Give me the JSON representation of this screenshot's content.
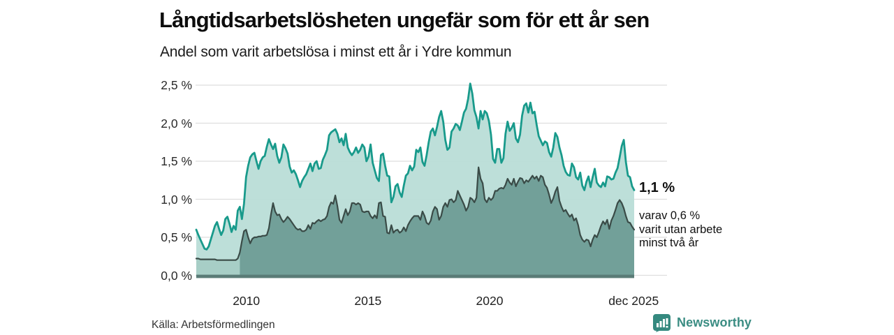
{
  "header": {
    "title": "Långtidsarbetslösheten ungefär som för ett år sen",
    "subtitle": "Andel som varit arbetslösa i minst ett år i Ydre kommun"
  },
  "chart_data": {
    "type": "area",
    "title": "Långtidsarbetslösheten ungefär som för ett år sen",
    "subtitle": "Andel som varit arbetslösa i minst ett år i Ydre kommun",
    "unit": "%",
    "x_domain": [
      2008,
      2026
    ],
    "ylim": [
      0,
      2.5
    ],
    "grid": true,
    "colors": {
      "line_1yr": "#189a8b",
      "fill_1yr": "#b9ddd7",
      "line_2yr": "#3a4b47",
      "fill_2yr": "#6e9c96",
      "fill_2yr_early": "#a5cdc5",
      "baseline_bar": "#5a7c77",
      "gridline": "#dedede"
    },
    "y_ticks": [
      {
        "label": "0,0 %",
        "value": 0
      },
      {
        "label": "0,5 %",
        "value": 0.5
      },
      {
        "label": "1,0 %",
        "value": 1.0
      },
      {
        "label": "1,5 %",
        "value": 1.5
      },
      {
        "label": "2,0 %",
        "value": 2.0
      },
      {
        "label": "2,5 %",
        "value": 2.5
      }
    ],
    "x_ticks": [
      {
        "label": "2010",
        "value": 2010
      },
      {
        "label": "2015",
        "value": 2015
      },
      {
        "label": "2020",
        "value": 2020
      },
      {
        "label": "dec 2025",
        "value": 2025.92
      }
    ],
    "series": [
      {
        "name": "Andel som varit arbetslösa i minst ett år",
        "color": "#189a8b",
        "fill": "#b9ddd7",
        "end_value": 1.1,
        "values": [
          0.6,
          0.53,
          0.47,
          0.41,
          0.35,
          0.34,
          0.38,
          0.47,
          0.56,
          0.65,
          0.7,
          0.61,
          0.53,
          0.59,
          0.74,
          0.77,
          0.68,
          0.57,
          0.65,
          0.6,
          0.85,
          0.9,
          0.74,
          0.94,
          1.29,
          1.44,
          1.55,
          1.59,
          1.61,
          1.5,
          1.4,
          1.5,
          1.55,
          1.57,
          1.69,
          1.79,
          1.72,
          1.66,
          1.73,
          1.57,
          1.48,
          1.55,
          1.72,
          1.67,
          1.6,
          1.43,
          1.35,
          1.38,
          1.33,
          1.25,
          1.16,
          1.24,
          1.29,
          1.33,
          1.4,
          1.47,
          1.37,
          1.47,
          1.5,
          1.4,
          1.41,
          1.52,
          1.58,
          1.65,
          1.84,
          1.88,
          1.9,
          1.92,
          1.86,
          1.75,
          1.8,
          1.71,
          1.86,
          1.68,
          1.62,
          1.58,
          1.62,
          1.68,
          1.61,
          1.65,
          1.72,
          1.68,
          1.5,
          1.56,
          1.72,
          1.48,
          1.38,
          1.28,
          1.24,
          1.58,
          1.6,
          1.44,
          1.31,
          1.3,
          0.96,
          1.03,
          1.17,
          1.2,
          1.09,
          1.03,
          1.18,
          1.31,
          1.34,
          1.44,
          1.38,
          1.43,
          1.65,
          1.62,
          1.68,
          1.49,
          1.44,
          1.58,
          1.75,
          1.89,
          1.93,
          1.84,
          1.95,
          2.08,
          2.16,
          2.02,
          1.78,
          1.65,
          1.68,
          1.89,
          1.93,
          1.99,
          1.97,
          1.91,
          2.02,
          2.14,
          2.19,
          2.32,
          2.52,
          2.39,
          2.17,
          2.08,
          1.93,
          2.16,
          2.05,
          2.16,
          2.13,
          2.03,
          1.85,
          1.53,
          1.48,
          1.66,
          1.66,
          1.48,
          1.54,
          1.86,
          2.02,
          1.9,
          1.94,
          2.0,
          1.8,
          1.75,
          1.85,
          2.1,
          2.23,
          2.26,
          2.14,
          2.27,
          2.13,
          2.15,
          1.98,
          1.83,
          1.77,
          1.71,
          1.76,
          1.74,
          1.62,
          1.56,
          1.68,
          1.87,
          1.82,
          1.68,
          1.58,
          1.44,
          1.36,
          1.32,
          1.31,
          1.47,
          1.42,
          1.29,
          1.26,
          1.35,
          1.18,
          1.12,
          1.23,
          1.3,
          1.16,
          1.29,
          1.4,
          1.22,
          1.18,
          1.16,
          1.22,
          1.17,
          1.3,
          1.29,
          1.26,
          1.27,
          1.35,
          1.41,
          1.55,
          1.7,
          1.78,
          1.49,
          1.31,
          1.29,
          1.17,
          1.12
        ]
      },
      {
        "name": "varav utan arbete minst två år",
        "color": "#3a4b47",
        "fill": "#6e9c96",
        "end_value": 0.6,
        "values": [
          0.22,
          0.22,
          0.21,
          0.21,
          0.21,
          0.21,
          0.21,
          0.21,
          0.21,
          0.21,
          0.2,
          0.2,
          0.2,
          0.2,
          0.2,
          0.2,
          0.2,
          0.2,
          0.2,
          0.2,
          0.22,
          0.3,
          0.45,
          0.58,
          0.6,
          0.5,
          0.42,
          0.48,
          0.5,
          0.5,
          0.51,
          0.51,
          0.52,
          0.52,
          0.53,
          0.62,
          0.8,
          0.95,
          0.84,
          0.79,
          0.8,
          0.74,
          0.7,
          0.73,
          0.77,
          0.74,
          0.7,
          0.66,
          0.62,
          0.6,
          0.61,
          0.58,
          0.58,
          0.6,
          0.66,
          0.61,
          0.69,
          0.68,
          0.71,
          0.73,
          0.71,
          0.73,
          0.74,
          0.78,
          0.9,
          0.96,
          0.94,
          1.05,
          0.91,
          0.73,
          0.69,
          0.78,
          0.87,
          0.79,
          0.84,
          0.95,
          0.95,
          0.93,
          0.95,
          0.93,
          0.84,
          0.83,
          0.84,
          0.84,
          0.78,
          0.75,
          0.79,
          0.75,
          0.95,
          0.96,
          0.78,
          0.77,
          0.56,
          0.55,
          0.66,
          0.56,
          0.59,
          0.6,
          0.56,
          0.58,
          0.63,
          0.58,
          0.66,
          0.71,
          0.75,
          0.78,
          0.78,
          0.78,
          0.73,
          0.84,
          0.78,
          0.69,
          0.67,
          0.72,
          0.84,
          0.9,
          0.87,
          0.73,
          0.78,
          0.9,
          0.95,
          0.9,
          0.99,
          1.0,
          0.96,
          0.99,
          1.11,
          1.05,
          0.99,
          0.93,
          0.85,
          0.9,
          1.02,
          1.0,
          0.96,
          1.02,
          1.42,
          1.27,
          1.21,
          1.0,
          0.96,
          1.02,
          0.99,
          1.02,
          1.11,
          1.11,
          1.14,
          1.15,
          1.14,
          1.19,
          1.27,
          1.22,
          1.19,
          1.27,
          1.17,
          1.23,
          1.28,
          1.27,
          1.21,
          1.25,
          1.23,
          1.27,
          1.31,
          1.27,
          1.3,
          1.24,
          1.31,
          1.29,
          1.19,
          1.15,
          1.06,
          0.95,
          1.01,
          1.1,
          1.16,
          0.98,
          0.9,
          0.84,
          0.86,
          0.81,
          0.77,
          0.8,
          0.72,
          0.75,
          0.66,
          0.53,
          0.47,
          0.44,
          0.47,
          0.46,
          0.38,
          0.47,
          0.53,
          0.5,
          0.57,
          0.65,
          0.71,
          0.67,
          0.73,
          0.61,
          0.72,
          0.78,
          0.86,
          0.95,
          0.99,
          0.95,
          0.88,
          0.78,
          0.7,
          0.69,
          0.64,
          0.6
        ]
      }
    ],
    "annotations": {
      "end_value_label": "1,1 %",
      "sub_label": "varav 0,6 %\nvarit utan arbete\nminst två år"
    }
  },
  "footer": {
    "source": "Källa: Arbetsförmedlingen",
    "brand": "Newsworthy"
  }
}
